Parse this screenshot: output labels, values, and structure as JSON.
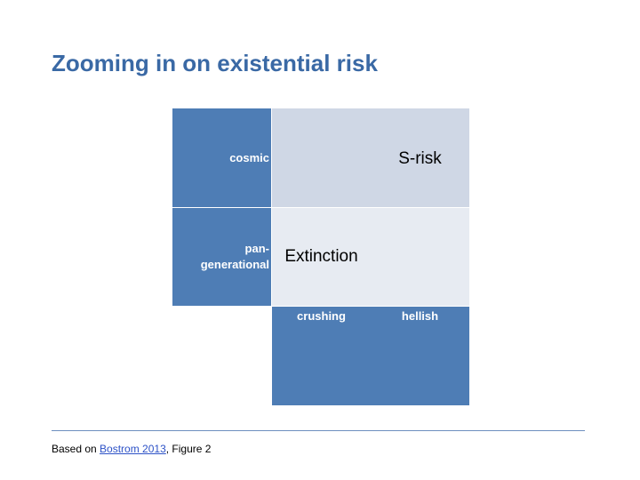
{
  "title": "Zooming in on existential risk",
  "grid": {
    "rows": [
      {
        "label": "cosmic"
      },
      {
        "label_line1": "pan-",
        "label_line2": "generational"
      }
    ],
    "columns": [
      {
        "label": "crushing"
      },
      {
        "label": "hellish"
      }
    ],
    "cells": {
      "cosmic_crushing": "",
      "cosmic_hellish": "S-risk",
      "pan_generational_crushing": "Extinction",
      "pan_generational_hellish": ""
    }
  },
  "footer": {
    "prefix": "Based on ",
    "link_text": "Bostrom 2013",
    "suffix": ", Figure 2"
  },
  "colors": {
    "title": "#3a69a5",
    "header_blue": "#4e7db5",
    "cell_mid": "#cfd7e5",
    "cell_light": "#e7ebf2",
    "link": "#2d52c7"
  }
}
